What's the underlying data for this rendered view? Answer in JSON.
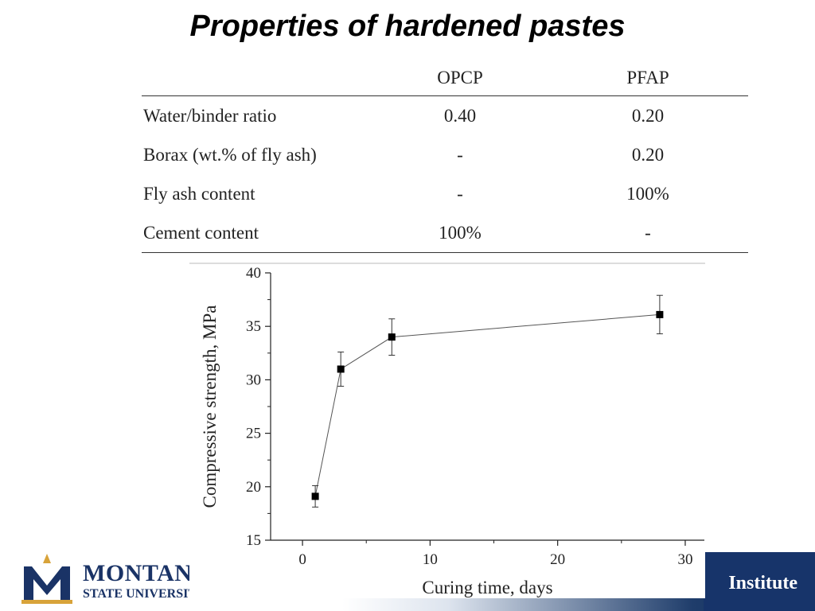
{
  "slide": {
    "title": "Properties of hardened pastes"
  },
  "table": {
    "headers": [
      "",
      "OPCP",
      "PFAP"
    ],
    "rows": [
      [
        "Water/binder ratio",
        "0.40",
        "0.20"
      ],
      [
        "Borax (wt.% of fly ash)",
        "-",
        "0.20"
      ],
      [
        "Fly ash content",
        "-",
        "100%"
      ],
      [
        "Cement content",
        "100%",
        "-"
      ]
    ]
  },
  "chart_data": {
    "type": "line",
    "title": "",
    "xlabel": "Curing time, days",
    "ylabel": "Compressive strength, MPa",
    "xlim": [
      -2.5,
      31.5
    ],
    "ylim": [
      15,
      40
    ],
    "xticks": [
      0,
      10,
      20,
      30
    ],
    "yticks": [
      15,
      20,
      25,
      30,
      35,
      40
    ],
    "grid": false,
    "marker": "square",
    "line_color": "#555555",
    "marker_color": "#000000",
    "series": [
      {
        "x": [
          1,
          3,
          7,
          28
        ],
        "y": [
          19.1,
          31.0,
          34.0,
          36.1
        ],
        "error": [
          1.0,
          1.6,
          1.7,
          1.8
        ]
      }
    ]
  },
  "footer": {
    "logo_name": "MONTANA",
    "logo_sub": "STATE UNIVERSITY",
    "right_text": "Institute",
    "colors": {
      "brand_navy": "#1a3366",
      "brand_gold": "#d8a33a",
      "band": "#17346a"
    }
  }
}
